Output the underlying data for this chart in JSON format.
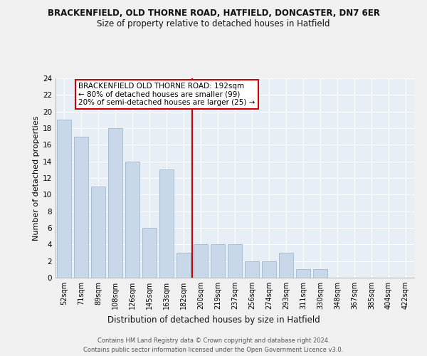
{
  "title_line1": "BRACKENFIELD, OLD THORNE ROAD, HATFIELD, DONCASTER, DN7 6ER",
  "title_line2": "Size of property relative to detached houses in Hatfield",
  "xlabel": "Distribution of detached houses by size in Hatfield",
  "ylabel": "Number of detached properties",
  "categories": [
    "52sqm",
    "71sqm",
    "89sqm",
    "108sqm",
    "126sqm",
    "145sqm",
    "163sqm",
    "182sqm",
    "200sqm",
    "219sqm",
    "237sqm",
    "256sqm",
    "274sqm",
    "293sqm",
    "311sqm",
    "330sqm",
    "348sqm",
    "367sqm",
    "385sqm",
    "404sqm",
    "422sqm"
  ],
  "values": [
    19,
    17,
    11,
    18,
    14,
    6,
    13,
    3,
    4,
    4,
    4,
    2,
    2,
    3,
    1,
    1,
    0,
    0,
    0,
    0,
    0
  ],
  "bar_color": "#c8d8e8",
  "bar_edgecolor": "#a0b8cc",
  "vline_x": 7.5,
  "vline_color": "#cc0000",
  "annotation_text": "BRACKENFIELD OLD THORNE ROAD: 192sqm\n← 80% of detached houses are smaller (99)\n20% of semi-detached houses are larger (25) →",
  "annotation_box_facecolor": "#ffffff",
  "annotation_box_edgecolor": "#cc0000",
  "ylim": [
    0,
    24
  ],
  "yticks": [
    0,
    2,
    4,
    6,
    8,
    10,
    12,
    14,
    16,
    18,
    20,
    22,
    24
  ],
  "plot_bg_color": "#e8eef5",
  "grid_color": "#ffffff",
  "fig_bg_color": "#f0f0f0",
  "footer_line1": "Contains HM Land Registry data © Crown copyright and database right 2024.",
  "footer_line2": "Contains public sector information licensed under the Open Government Licence v3.0."
}
